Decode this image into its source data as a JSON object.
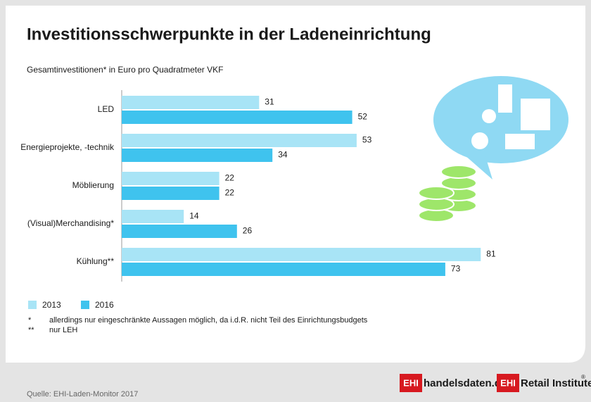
{
  "chart_data": {
    "type": "hbar",
    "title": "Investitionsschwerpunkte in der Ladeneinrichtung",
    "subtitle": "Gesamtinvestitionen* in Euro pro Quadratmeter VKF",
    "categories": [
      "LED",
      "Energieprojekte, -technik",
      "Möblierung",
      "(Visual)Merchandising*",
      "Kühlung**"
    ],
    "series": [
      {
        "name": "2013",
        "color": "#a8e4f6",
        "values": [
          31,
          53,
          22,
          14,
          81
        ]
      },
      {
        "name": "2016",
        "color": "#3fc3ee",
        "values": [
          52,
          34,
          22,
          26,
          73
        ]
      }
    ],
    "footnotes": [
      {
        "mark": "*",
        "text": "allerdings nur eingeschränkte Aussagen möglich, da i.d.R. nicht Teil des Einrichtungsbudgets"
      },
      {
        "mark": "**",
        "text": "nur LEH"
      }
    ],
    "source": "Quelle: EHI-Laden-Monitor 2017",
    "logos": [
      {
        "badge": "EHI",
        "text": "handelsdaten.de"
      },
      {
        "badge": "EHI",
        "text": "Retail Institute",
        "sup": "®"
      }
    ]
  }
}
